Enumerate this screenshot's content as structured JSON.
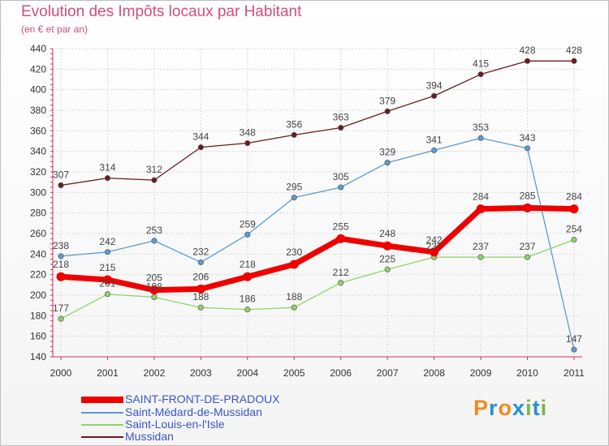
{
  "header": {
    "title": "Evolution des Impôts locaux par Habitant",
    "subtitle": "(en € et par an)"
  },
  "logo": {
    "text": "Proxiti",
    "letter_colors": [
      "#f28a1c",
      "#2a8fd6",
      "#f28a1c",
      "#2a8fd6",
      "#7ab648",
      "#2a8fd6",
      "#7ab648"
    ]
  },
  "chart_data": {
    "type": "line",
    "x": [
      "2000",
      "2001",
      "2002",
      "2003",
      "2004",
      "2005",
      "2006",
      "2007",
      "2008",
      "2009",
      "2010",
      "2011"
    ],
    "ylim": [
      140,
      440
    ],
    "yticks": [
      140,
      160,
      180,
      200,
      220,
      240,
      260,
      280,
      300,
      320,
      340,
      360,
      380,
      400,
      420,
      440
    ],
    "grid": true,
    "legend_position": "bottom-left",
    "series": [
      {
        "name": "Mussidan",
        "color": "#6b1a22",
        "values": [
          307,
          314,
          312,
          344,
          348,
          356,
          363,
          379,
          394,
          415,
          428,
          428
        ]
      },
      {
        "name": "Saint-Médard-de-Mussidan",
        "color": "#5b9bd5",
        "values": [
          238,
          242,
          253,
          232,
          259,
          295,
          305,
          329,
          341,
          353,
          343,
          147
        ]
      },
      {
        "name": "Saint-Louis-en-l'Isle",
        "color": "#8fd46a",
        "values": [
          177,
          201,
          198,
          188,
          186,
          188,
          212,
          225,
          237,
          237,
          237,
          254
        ]
      },
      {
        "name": "SAINT-FRONT-DE-PRADOUX",
        "color": "#ee0000",
        "values": [
          218,
          215,
          205,
          206,
          218,
          230,
          255,
          248,
          242,
          284,
          285,
          284
        ]
      }
    ],
    "legend": [
      {
        "name": "SAINT-FRONT-DE-PRADOUX",
        "color": "#ee0000"
      },
      {
        "name": "Saint-Médard-de-Mussidan",
        "color": "#5b9bd5"
      },
      {
        "name": "Saint-Louis-en-l'Isle",
        "color": "#8fd46a"
      },
      {
        "name": "Mussidan",
        "color": "#6b1a22"
      }
    ]
  }
}
